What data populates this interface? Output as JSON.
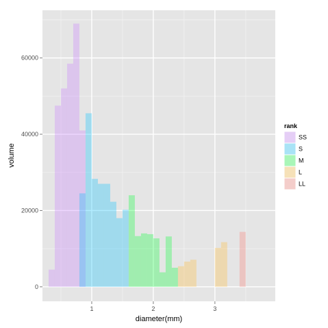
{
  "chart_data": {
    "type": "bar",
    "title": "",
    "xlabel": "diameter(mm)",
    "ylabel": "volume",
    "xlim": [
      0.2,
      3.98
    ],
    "ylim": [
      -3800,
      72500
    ],
    "x_ticks": [
      1,
      2,
      3
    ],
    "x_tick_labels": [
      "1",
      "2",
      "3"
    ],
    "y_ticks": [
      0,
      20000,
      40000,
      60000
    ],
    "y_tick_labels": [
      "0",
      "20000",
      "40000",
      "60000"
    ],
    "grid": true,
    "legend": {
      "title": "rank",
      "placement": "right"
    },
    "bin_width": 0.1,
    "series": [
      {
        "name": "SS",
        "color": "#C77CFF",
        "bars": [
          {
            "x": 0.35,
            "y": 4500
          },
          {
            "x": 0.45,
            "y": 47500
          },
          {
            "x": 0.55,
            "y": 52000
          },
          {
            "x": 0.65,
            "y": 58500
          },
          {
            "x": 0.75,
            "y": 69000
          },
          {
            "x": 0.85,
            "y": 41000
          }
        ]
      },
      {
        "name": "S",
        "color": "#00BFFF",
        "bars": [
          {
            "x": 0.85,
            "y": 24500
          },
          {
            "x": 0.95,
            "y": 45500
          },
          {
            "x": 1.05,
            "y": 28300
          },
          {
            "x": 1.15,
            "y": 27000
          },
          {
            "x": 1.25,
            "y": 27000
          },
          {
            "x": 1.35,
            "y": 22300
          },
          {
            "x": 1.45,
            "y": 18000
          },
          {
            "x": 1.55,
            "y": 20200
          }
        ]
      },
      {
        "name": "M",
        "color": "#00FF33",
        "bars": [
          {
            "x": 1.65,
            "y": 24000
          },
          {
            "x": 1.75,
            "y": 13300
          },
          {
            "x": 1.85,
            "y": 14000
          },
          {
            "x": 1.95,
            "y": 13800
          },
          {
            "x": 2.05,
            "y": 12700
          },
          {
            "x": 2.15,
            "y": 3800
          },
          {
            "x": 2.25,
            "y": 13200
          },
          {
            "x": 2.35,
            "y": 5000
          }
        ]
      },
      {
        "name": "L",
        "color": "#FFB833",
        "bars": [
          {
            "x": 2.45,
            "y": 5400
          },
          {
            "x": 2.55,
            "y": 6600
          },
          {
            "x": 2.65,
            "y": 7100
          },
          {
            "x": 3.05,
            "y": 10200
          },
          {
            "x": 3.15,
            "y": 11700
          }
        ]
      },
      {
        "name": "LL",
        "color": "#F8766D",
        "bars": [
          {
            "x": 3.45,
            "y": 14400
          }
        ]
      }
    ]
  }
}
